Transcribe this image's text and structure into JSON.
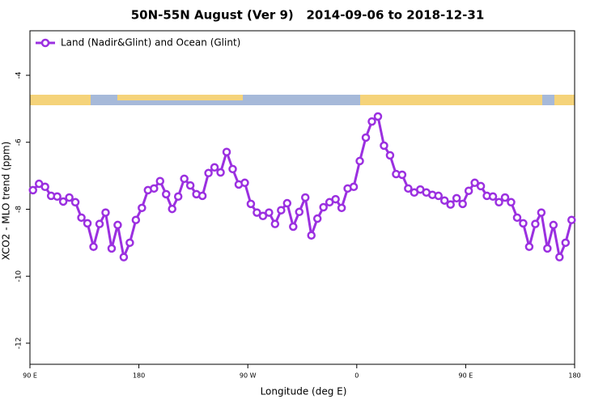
{
  "chart_data": {
    "type": "line",
    "title": "50N-55N August (Ver 9)   2014-09-06 to 2018-12-31",
    "xlabel": "Longitude (deg E)",
    "ylabel": "XCO2 - MLO trend (ppm)",
    "x": [
      92.5,
      97.5,
      102.5,
      107.5,
      112.5,
      117.5,
      122.5,
      127.5,
      132.5,
      137.5,
      142.5,
      147.5,
      152.5,
      157.5,
      162.5,
      167.5,
      172.5,
      177.5,
      182.5,
      187.5,
      192.5,
      197.5,
      202.5,
      207.5,
      212.5,
      217.5,
      222.5,
      227.5,
      232.5,
      237.5,
      242.5,
      247.5,
      252.5,
      257.5,
      262.5,
      267.5,
      272.5,
      277.5,
      282.5,
      287.5,
      292.5,
      297.5,
      302.5,
      307.5,
      312.5,
      317.5,
      322.5,
      327.5,
      332.5,
      337.5,
      342.5,
      347.5,
      352.5,
      357.5,
      362.5,
      367.5,
      372.5,
      377.5,
      382.5,
      387.5,
      392.5,
      397.5,
      402.5,
      407.5,
      412.5,
      417.5,
      422.5,
      427.5,
      432.5,
      437.5,
      442.5,
      447.5,
      452.5,
      457.5,
      462.5,
      467.5,
      472.5,
      477.5,
      482.5,
      487.5,
      492.5,
      497.5,
      502.5,
      507.5,
      512.5,
      517.5,
      522.5,
      527.5,
      532.5,
      537.5
    ],
    "series": [
      {
        "name": "Land (Nadir&Glint) and Ocean (Glint)",
        "color": "#9b30e0",
        "values": [
          -7.43,
          -7.24,
          -7.33,
          -7.6,
          -7.62,
          -7.77,
          -7.65,
          -7.79,
          -8.25,
          -8.42,
          -9.12,
          -8.44,
          -8.1,
          -9.17,
          -8.47,
          -9.43,
          -9.0,
          -8.32,
          -7.96,
          -7.43,
          -7.38,
          -7.16,
          -7.55,
          -7.99,
          -7.62,
          -7.09,
          -7.29,
          -7.55,
          -7.6,
          -6.92,
          -6.75,
          -6.9,
          -6.29,
          -6.8,
          -7.26,
          -7.21,
          -7.84,
          -8.1,
          -8.2,
          -8.1,
          -8.44,
          -8.03,
          -7.82,
          -8.52,
          -8.08,
          -7.65,
          -8.78,
          -8.28,
          -7.94,
          -7.79,
          -7.7,
          -7.96,
          -7.38,
          -7.33,
          -6.56,
          -5.86,
          -5.38,
          -5.23,
          -6.1,
          -6.39,
          -6.95,
          -6.97,
          -7.38,
          -7.5,
          -7.41,
          -7.5,
          -7.57,
          -7.6,
          -7.74,
          -7.86,
          -7.67,
          -7.84,
          -7.45,
          -7.21,
          -7.31,
          -7.6,
          -7.62,
          -7.79,
          -7.65,
          -7.79,
          -8.25,
          -8.42,
          -9.12,
          -8.44,
          -8.1,
          -9.17,
          -8.47,
          -9.43,
          -9.0,
          -8.32
        ]
      }
    ],
    "xlim": [
      90,
      540
    ],
    "xticks": [
      {
        "value": 90,
        "label": "90 E"
      },
      {
        "value": 180,
        "label": "180"
      },
      {
        "value": 270,
        "label": "90 W"
      },
      {
        "value": 360,
        "label": "0"
      },
      {
        "value": 450,
        "label": "90 E"
      },
      {
        "value": 540,
        "label": "180"
      }
    ],
    "ylim": [
      -12.63,
      -2.67
    ],
    "yticks": [
      -12,
      -10,
      -8,
      -6,
      -4
    ],
    "legend": "upper left"
  }
}
